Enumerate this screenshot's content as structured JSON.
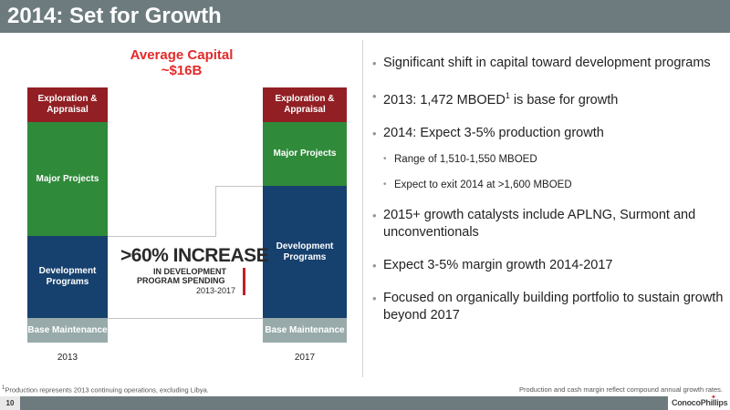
{
  "title": "2014: Set for Growth",
  "chart": {
    "title_line1": "Average Capital",
    "title_line2": "~$16B",
    "bar2013": {
      "year": "2013",
      "segments": {
        "exploration": "Exploration & Appraisal",
        "major": "Major Projects",
        "development": "Development Programs",
        "base": "Base Maintenance"
      }
    },
    "bar2017": {
      "year": "2017",
      "segments": {
        "exploration": "Exploration & Appraisal",
        "major": "Major Projects",
        "development": "Development Programs",
        "base": "Base Maintenance"
      }
    },
    "callout": {
      "big": ">60% INCREASE",
      "line2": "IN DEVELOPMENT",
      "line3": "PROGRAM SPENDING",
      "years": "2013-2017"
    }
  },
  "chart_data": {
    "type": "bar",
    "categories": [
      "2013",
      "2017"
    ],
    "series": [
      {
        "name": "Base Maintenance"
      },
      {
        "name": "Development Programs"
      },
      {
        "name": "Major Projects"
      },
      {
        "name": "Exploration & Appraisal"
      }
    ],
    "title": "Average Capital ~$16B",
    "annotation": ">60% INCREASE IN DEVELOPMENT PROGRAM SPENDING 2013-2017"
  },
  "bullets": {
    "b1": "Significant shift in capital toward development programs",
    "b2_pre": "2013: 1,472 MBOED",
    "b2_sup": "1",
    "b2_post": " is base for growth",
    "b3": "2014: Expect 3-5% production growth",
    "s1": "Range of 1,510-1,550 MBOED",
    "s2": "Expect to exit 2014 at >1,600 MBOED",
    "b4": "2015+ growth catalysts include APLNG, Surmont and unconventionals",
    "b5": "Expect 3-5% margin growth 2014-2017",
    "b6": "Focused on organically building portfolio to sustain growth beyond 2017"
  },
  "footnote_left_sup": "1",
  "footnote_left": "Production represents 2013 continuing operations, excluding Libya.",
  "footnote_right": "Production and cash margin reflect compound annual growth rates.",
  "page_number": "10",
  "logo": "ConocoPhillips",
  "colors": {
    "header": "#6d7b7e",
    "exploration": "#911f24",
    "major": "#2f8a3a",
    "development": "#16406d",
    "base": "#98aaaa",
    "accent": "#e42a2a"
  }
}
